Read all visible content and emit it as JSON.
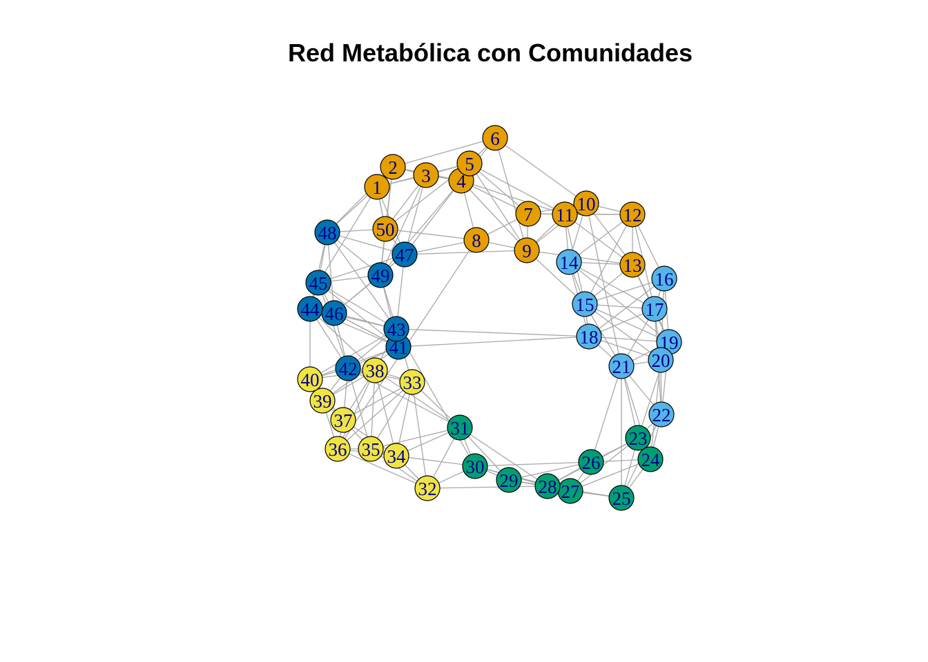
{
  "title": "Red Metabólica con Comunidades",
  "community_colors": {
    "orange": "#E69F00",
    "dark_blue": "#0072B2",
    "light_blue": "#56B4E9",
    "green": "#009E73",
    "yellow": "#F0E442"
  },
  "label_color": "#00008b",
  "edge_color": "#a8a8a8",
  "nodes": [
    {
      "id": "1",
      "community": "orange"
    },
    {
      "id": "2",
      "community": "orange"
    },
    {
      "id": "3",
      "community": "orange"
    },
    {
      "id": "4",
      "community": "orange"
    },
    {
      "id": "5",
      "community": "orange"
    },
    {
      "id": "6",
      "community": "orange"
    },
    {
      "id": "7",
      "community": "orange"
    },
    {
      "id": "8",
      "community": "orange"
    },
    {
      "id": "9",
      "community": "orange"
    },
    {
      "id": "10",
      "community": "orange"
    },
    {
      "id": "11",
      "community": "orange"
    },
    {
      "id": "12",
      "community": "orange"
    },
    {
      "id": "13",
      "community": "orange"
    },
    {
      "id": "14",
      "community": "light_blue"
    },
    {
      "id": "15",
      "community": "light_blue"
    },
    {
      "id": "16",
      "community": "light_blue"
    },
    {
      "id": "17",
      "community": "light_blue"
    },
    {
      "id": "18",
      "community": "light_blue"
    },
    {
      "id": "19",
      "community": "light_blue"
    },
    {
      "id": "20",
      "community": "light_blue"
    },
    {
      "id": "21",
      "community": "light_blue"
    },
    {
      "id": "22",
      "community": "light_blue"
    },
    {
      "id": "23",
      "community": "green"
    },
    {
      "id": "24",
      "community": "green"
    },
    {
      "id": "25",
      "community": "green"
    },
    {
      "id": "26",
      "community": "green"
    },
    {
      "id": "27",
      "community": "green"
    },
    {
      "id": "28",
      "community": "green"
    },
    {
      "id": "29",
      "community": "green"
    },
    {
      "id": "30",
      "community": "green"
    },
    {
      "id": "31",
      "community": "green"
    },
    {
      "id": "32",
      "community": "yellow"
    },
    {
      "id": "33",
      "community": "yellow"
    },
    {
      "id": "34",
      "community": "yellow"
    },
    {
      "id": "35",
      "community": "yellow"
    },
    {
      "id": "36",
      "community": "yellow"
    },
    {
      "id": "37",
      "community": "yellow"
    },
    {
      "id": "38",
      "community": "yellow"
    },
    {
      "id": "39",
      "community": "yellow"
    },
    {
      "id": "40",
      "community": "yellow"
    },
    {
      "id": "41",
      "community": "dark_blue"
    },
    {
      "id": "42",
      "community": "dark_blue"
    },
    {
      "id": "43",
      "community": "dark_blue"
    },
    {
      "id": "44",
      "community": "dark_blue"
    },
    {
      "id": "45",
      "community": "dark_blue"
    },
    {
      "id": "46",
      "community": "dark_blue"
    },
    {
      "id": "47",
      "community": "dark_blue"
    },
    {
      "id": "48",
      "community": "dark_blue"
    },
    {
      "id": "49",
      "community": "dark_blue"
    },
    {
      "id": "50",
      "community": "orange"
    }
  ],
  "edges": [
    [
      "1",
      "2"
    ],
    [
      "1",
      "3"
    ],
    [
      "1",
      "50"
    ],
    [
      "1",
      "48"
    ],
    [
      "1",
      "5"
    ],
    [
      "1",
      "47"
    ],
    [
      "2",
      "3"
    ],
    [
      "2",
      "4"
    ],
    [
      "2",
      "6"
    ],
    [
      "2",
      "50"
    ],
    [
      "2",
      "49"
    ],
    [
      "3",
      "4"
    ],
    [
      "3",
      "5"
    ],
    [
      "3",
      "50"
    ],
    [
      "3",
      "47"
    ],
    [
      "4",
      "5"
    ],
    [
      "4",
      "6"
    ],
    [
      "4",
      "8"
    ],
    [
      "4",
      "7"
    ],
    [
      "4",
      "9"
    ],
    [
      "4",
      "47"
    ],
    [
      "4",
      "11"
    ],
    [
      "4",
      "49"
    ],
    [
      "5",
      "7"
    ],
    [
      "5",
      "6"
    ],
    [
      "5",
      "11"
    ],
    [
      "5",
      "9"
    ],
    [
      "6",
      "9"
    ],
    [
      "6",
      "10"
    ],
    [
      "7",
      "8"
    ],
    [
      "7",
      "11"
    ],
    [
      "7",
      "10"
    ],
    [
      "7",
      "9"
    ],
    [
      "7",
      "12"
    ],
    [
      "8",
      "9"
    ],
    [
      "8",
      "47"
    ],
    [
      "8",
      "50"
    ],
    [
      "8",
      "36"
    ],
    [
      "9",
      "10"
    ],
    [
      "9",
      "11"
    ],
    [
      "9",
      "13"
    ],
    [
      "9",
      "15"
    ],
    [
      "10",
      "11"
    ],
    [
      "10",
      "12"
    ],
    [
      "10",
      "14"
    ],
    [
      "10",
      "13"
    ],
    [
      "10",
      "21"
    ],
    [
      "11",
      "12"
    ],
    [
      "11",
      "13"
    ],
    [
      "11",
      "14"
    ],
    [
      "11",
      "15"
    ],
    [
      "12",
      "13"
    ],
    [
      "12",
      "14"
    ],
    [
      "12",
      "16"
    ],
    [
      "12",
      "15"
    ],
    [
      "12",
      "17"
    ],
    [
      "13",
      "15"
    ],
    [
      "13",
      "17"
    ],
    [
      "13",
      "19"
    ],
    [
      "13",
      "14"
    ],
    [
      "14",
      "15"
    ],
    [
      "14",
      "18"
    ],
    [
      "14",
      "17"
    ],
    [
      "14",
      "19"
    ],
    [
      "15",
      "16"
    ],
    [
      "15",
      "17"
    ],
    [
      "15",
      "18"
    ],
    [
      "15",
      "20"
    ],
    [
      "15",
      "21"
    ],
    [
      "15",
      "19"
    ],
    [
      "16",
      "17"
    ],
    [
      "16",
      "19"
    ],
    [
      "16",
      "20"
    ],
    [
      "16",
      "18"
    ],
    [
      "17",
      "18"
    ],
    [
      "17",
      "19"
    ],
    [
      "17",
      "20"
    ],
    [
      "17",
      "21"
    ],
    [
      "17",
      "22"
    ],
    [
      "18",
      "19"
    ],
    [
      "18",
      "21"
    ],
    [
      "18",
      "20"
    ],
    [
      "18",
      "43"
    ],
    [
      "19",
      "20"
    ],
    [
      "19",
      "21"
    ],
    [
      "19",
      "22"
    ],
    [
      "19",
      "23"
    ],
    [
      "20",
      "21"
    ],
    [
      "20",
      "22"
    ],
    [
      "20",
      "24"
    ],
    [
      "21",
      "23"
    ],
    [
      "21",
      "24"
    ],
    [
      "21",
      "25"
    ],
    [
      "21",
      "26"
    ],
    [
      "21",
      "22"
    ],
    [
      "22",
      "23"
    ],
    [
      "22",
      "24"
    ],
    [
      "22",
      "25"
    ],
    [
      "23",
      "24"
    ],
    [
      "23",
      "25"
    ],
    [
      "23",
      "26"
    ],
    [
      "23",
      "27"
    ],
    [
      "23",
      "28"
    ],
    [
      "24",
      "25"
    ],
    [
      "24",
      "27"
    ],
    [
      "24",
      "26"
    ],
    [
      "25",
      "27"
    ],
    [
      "25",
      "28"
    ],
    [
      "26",
      "27"
    ],
    [
      "26",
      "28"
    ],
    [
      "26",
      "29"
    ],
    [
      "26",
      "30"
    ],
    [
      "27",
      "28"
    ],
    [
      "27",
      "29"
    ],
    [
      "27",
      "30"
    ],
    [
      "28",
      "29"
    ],
    [
      "28",
      "30"
    ],
    [
      "28",
      "31"
    ],
    [
      "29",
      "30"
    ],
    [
      "29",
      "31"
    ],
    [
      "30",
      "31"
    ],
    [
      "30",
      "32"
    ],
    [
      "30",
      "34"
    ],
    [
      "30",
      "43"
    ],
    [
      "31",
      "32"
    ],
    [
      "31",
      "33"
    ],
    [
      "31",
      "34"
    ],
    [
      "31",
      "38"
    ],
    [
      "31",
      "42"
    ],
    [
      "31",
      "35"
    ],
    [
      "32",
      "33"
    ],
    [
      "32",
      "34"
    ],
    [
      "32",
      "35"
    ],
    [
      "32",
      "36"
    ],
    [
      "32",
      "28"
    ],
    [
      "33",
      "34"
    ],
    [
      "33",
      "35"
    ],
    [
      "33",
      "36"
    ],
    [
      "33",
      "38"
    ],
    [
      "33",
      "43"
    ],
    [
      "33",
      "42"
    ],
    [
      "33",
      "37"
    ],
    [
      "34",
      "35"
    ],
    [
      "34",
      "36"
    ],
    [
      "34",
      "38"
    ],
    [
      "34",
      "37"
    ],
    [
      "35",
      "36"
    ],
    [
      "35",
      "38"
    ],
    [
      "35",
      "42"
    ],
    [
      "35",
      "37"
    ],
    [
      "36",
      "37"
    ],
    [
      "36",
      "38"
    ],
    [
      "36",
      "39"
    ],
    [
      "37",
      "38"
    ],
    [
      "37",
      "39"
    ],
    [
      "37",
      "40"
    ],
    [
      "37",
      "42"
    ],
    [
      "38",
      "39"
    ],
    [
      "38",
      "40"
    ],
    [
      "38",
      "42"
    ],
    [
      "38",
      "44"
    ],
    [
      "38",
      "43"
    ],
    [
      "39",
      "40"
    ],
    [
      "39",
      "42"
    ],
    [
      "39",
      "41"
    ],
    [
      "40",
      "41"
    ],
    [
      "40",
      "42"
    ],
    [
      "40",
      "44"
    ],
    [
      "40",
      "43"
    ],
    [
      "41",
      "42"
    ],
    [
      "41",
      "43"
    ],
    [
      "41",
      "44"
    ],
    [
      "41",
      "46"
    ],
    [
      "41",
      "45"
    ],
    [
      "41",
      "18"
    ],
    [
      "42",
      "43"
    ],
    [
      "42",
      "44"
    ],
    [
      "42",
      "46"
    ],
    [
      "42",
      "45"
    ],
    [
      "43",
      "44"
    ],
    [
      "43",
      "45"
    ],
    [
      "43",
      "46"
    ],
    [
      "43",
      "47"
    ],
    [
      "43",
      "49"
    ],
    [
      "43",
      "48"
    ],
    [
      "44",
      "45"
    ],
    [
      "44",
      "46"
    ],
    [
      "44",
      "48"
    ],
    [
      "45",
      "46"
    ],
    [
      "45",
      "47"
    ],
    [
      "45",
      "48"
    ],
    [
      "45",
      "49"
    ],
    [
      "45",
      "1"
    ],
    [
      "46",
      "47"
    ],
    [
      "46",
      "48"
    ],
    [
      "46",
      "49"
    ],
    [
      "46",
      "41"
    ],
    [
      "47",
      "48"
    ],
    [
      "47",
      "49"
    ],
    [
      "47",
      "50"
    ],
    [
      "47",
      "9"
    ],
    [
      "48",
      "49"
    ],
    [
      "48",
      "50"
    ],
    [
      "48",
      "2"
    ],
    [
      "49",
      "50"
    ],
    [
      "49",
      "3"
    ],
    [
      "49",
      "41"
    ],
    [
      "50",
      "5"
    ],
    [
      "50",
      "1"
    ]
  ]
}
